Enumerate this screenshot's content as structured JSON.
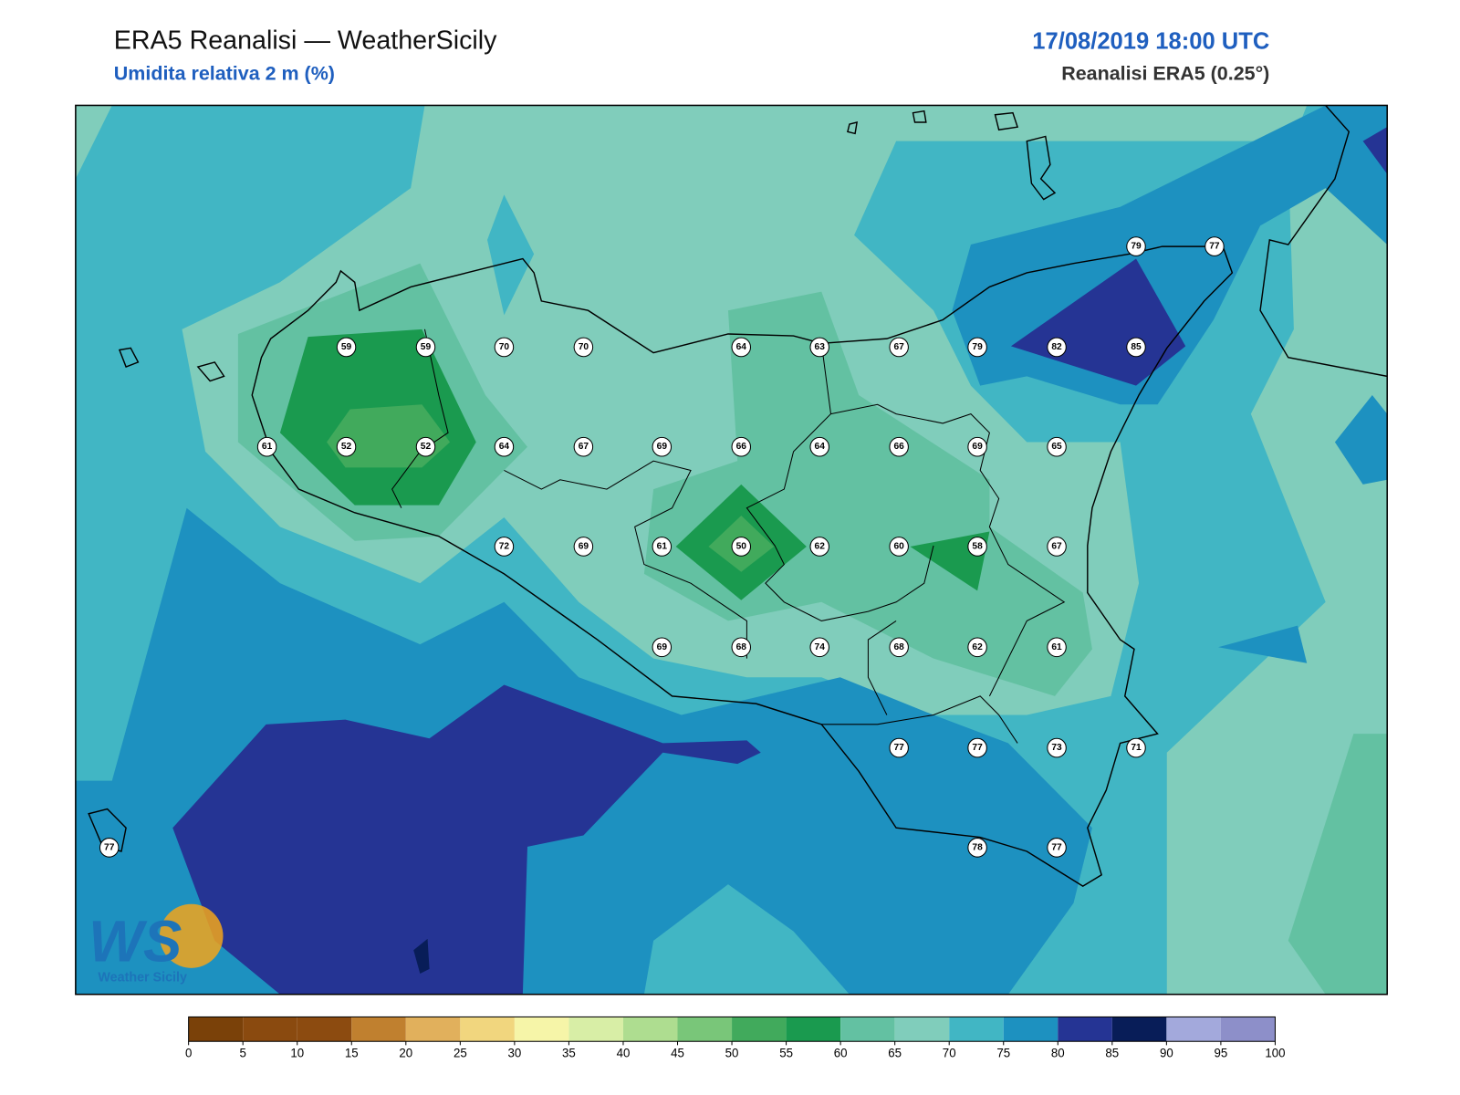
{
  "header": {
    "title": "ERA5 Reanalisi — WeatherSicily",
    "subtitle": "Umidita relativa 2 m (%)",
    "date": "17/08/2019 18:00 UTC",
    "source": "Reanalisi ERA5 (0.25°)"
  },
  "map": {
    "station_values": [
      79,
      77,
      59,
      59,
      70,
      70,
      64,
      63,
      67,
      79,
      82,
      85,
      61,
      52,
      52,
      64,
      67,
      69,
      66,
      64,
      66,
      69,
      65,
      72,
      69,
      61,
      50,
      62,
      60,
      58,
      67,
      69,
      68,
      74,
      68,
      62,
      61,
      77,
      77,
      73,
      71,
      77,
      78,
      77
    ]
  },
  "colorbar": {
    "ticks": [
      0,
      5,
      10,
      15,
      20,
      25,
      30,
      35,
      40,
      45,
      50,
      55,
      60,
      65,
      70,
      75,
      80,
      85,
      90,
      95,
      100
    ],
    "colors": [
      "#7a4109",
      "#8a4a0f",
      "#8c4b10",
      "#c0802f",
      "#e1b05c",
      "#f1d67e",
      "#f6f5a8",
      "#d8eea6",
      "#aedd90",
      "#79c679",
      "#41aa5c",
      "#1a9a4f",
      "#63c1a2",
      "#80cdbb",
      "#41b6c4",
      "#1d91c0",
      "#253494",
      "#081d58",
      "#a3a9dc",
      "#8d8fc9"
    ]
  },
  "logo": {
    "mark": "WS",
    "name": "Weather Sicily"
  }
}
